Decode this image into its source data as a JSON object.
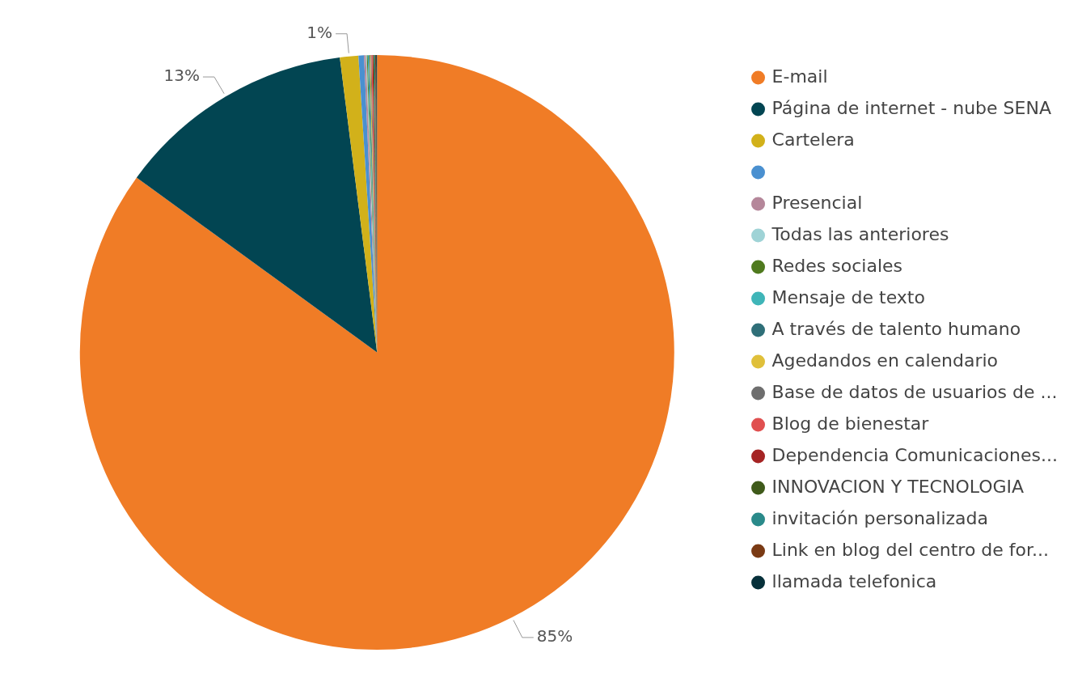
{
  "chart_data": {
    "type": "pie",
    "categories": [
      "E-mail",
      "Página de internet - nube SENA",
      "Cartelera",
      null,
      "Presencial",
      "Todas las anteriores",
      "Redes sociales",
      "Mensaje de texto",
      "A través de talento humano",
      "Agedandos en calendario",
      "Base de datos de usuarios de ...",
      "Blog de bienestar",
      "Dependencia Comunicaciones...",
      "INNOVACION Y TECNOLOGIA",
      "invitación personalizada",
      "Link en blog del centro de for...",
      "llamada telefonica"
    ],
    "values": [
      85,
      13,
      1,
      0.3,
      0.1,
      0.05,
      0.05,
      0.05,
      0.05,
      0.05,
      0.05,
      0.05,
      0.05,
      0.05,
      0.05,
      0.05,
      0.05
    ],
    "value_labels": [
      "85%",
      "13%",
      "1%",
      null,
      null,
      null,
      null,
      null,
      null,
      null,
      null,
      null,
      null,
      null,
      null,
      null,
      null
    ],
    "colors": [
      "#f07c26",
      "#024552",
      "#d2b11a",
      "#4a90d0",
      "#b5879a",
      "#9fd3d6",
      "#4f7a1e",
      "#3fb5b8",
      "#2f6f78",
      "#e0c03a",
      "#6e6e6e",
      "#e05050",
      "#a52424",
      "#3f5a1a",
      "#2a8a8a",
      "#7a3a14",
      "#06303a"
    ],
    "legend": "top right"
  }
}
